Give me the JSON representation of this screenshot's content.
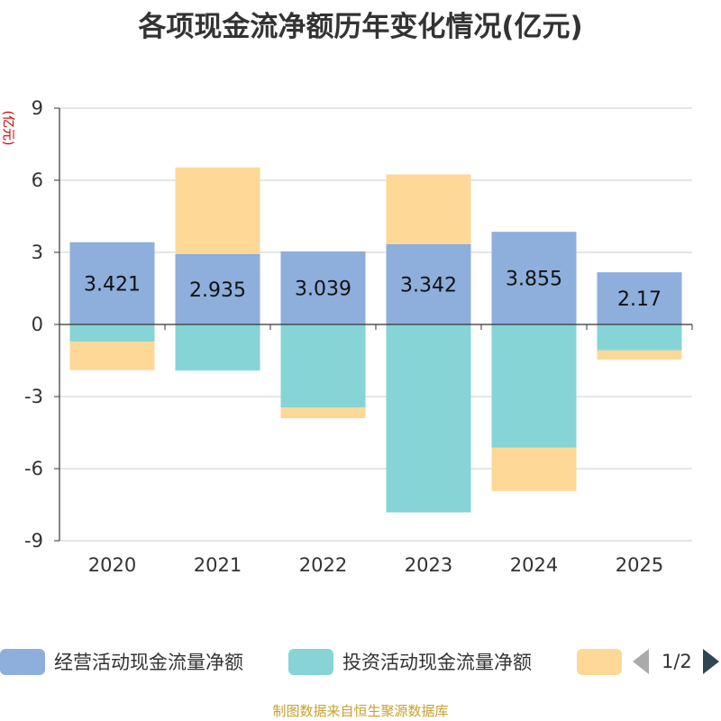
{
  "chart_data": {
    "type": "bar",
    "stacked": true,
    "title": "各项现金流净额历年变化情况(亿元)",
    "ylabel": "(亿元)",
    "xlabel": "",
    "ylim": [
      -9,
      9
    ],
    "yticks": [
      -9,
      -6,
      -3,
      0,
      3,
      6,
      9
    ],
    "grid": true,
    "categories": [
      "2020",
      "2021",
      "2022",
      "2023",
      "2024",
      "2025"
    ],
    "series": [
      {
        "name": "经营活动现金流量净额",
        "color": "#8eaedc",
        "values": [
          3.421,
          2.935,
          3.039,
          3.342,
          3.855,
          2.17
        ],
        "show_labels": true
      },
      {
        "name": "投资活动现金流量净额",
        "color": "#86d4d6",
        "values": [
          -0.72,
          -1.92,
          -3.45,
          -7.82,
          -5.13,
          -1.08
        ]
      },
      {
        "name": "",
        "color": "#fed897",
        "values": [
          -1.18,
          3.6,
          -0.45,
          2.9,
          -1.8,
          -0.38
        ]
      }
    ]
  },
  "legend": {
    "page_text": "1/2"
  },
  "source_note": "制图数据来自恒生聚源数据库"
}
